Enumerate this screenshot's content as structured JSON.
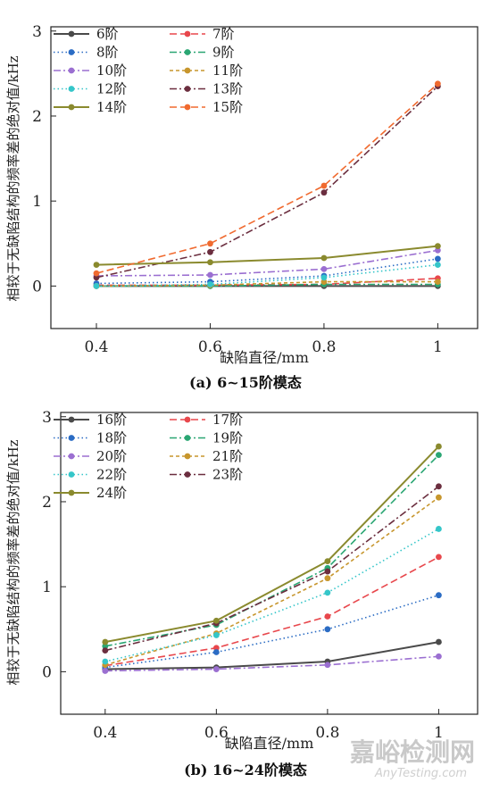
{
  "watermark": {
    "text": "嘉峪检测网",
    "url": "AnyTesting.com"
  },
  "chart_data": [
    {
      "type": "line",
      "caption": "(a) 6~15阶模态",
      "xlabel": "缺陷直径/mm",
      "ylabel": "相较于无缺陷结构的频率差的绝对值/kHz",
      "x": [
        0.4,
        0.6,
        0.8,
        1.0
      ],
      "x_tick_labels": [
        "0.4",
        "0.6",
        "0.8",
        "1"
      ],
      "xlim": [
        0.32,
        1.07
      ],
      "ylim": [
        -0.5,
        3.05
      ],
      "y_ticks": [
        0,
        1,
        2,
        3
      ],
      "legend": "top-left, 2 columns",
      "series": [
        {
          "name": "6阶",
          "color": "#4a4a4a",
          "dash": "solid",
          "values": [
            0.0,
            0.0,
            0.0,
            0.0
          ]
        },
        {
          "name": "7阶",
          "color": "#e8474c",
          "dash": "dash",
          "values": [
            0.01,
            0.01,
            0.02,
            0.09
          ]
        },
        {
          "name": "8阶",
          "color": "#2b6cc4",
          "dash": "dot",
          "values": [
            0.03,
            0.05,
            0.12,
            0.32
          ]
        },
        {
          "name": "9阶",
          "color": "#2aa673",
          "dash": "dashdot",
          "values": [
            0.0,
            0.0,
            0.02,
            0.02
          ]
        },
        {
          "name": "10阶",
          "color": "#9b6fd1",
          "dash": "dashdot",
          "values": [
            0.12,
            0.13,
            0.2,
            0.42
          ]
        },
        {
          "name": "11阶",
          "color": "#c7962d",
          "dash": "shortdash",
          "values": [
            0.0,
            0.01,
            0.05,
            0.05
          ]
        },
        {
          "name": "12阶",
          "color": "#35c6c9",
          "dash": "dot",
          "values": [
            0.0,
            0.02,
            0.1,
            0.25
          ]
        },
        {
          "name": "13阶",
          "color": "#6b2e3f",
          "dash": "dashdot",
          "values": [
            0.1,
            0.4,
            1.1,
            2.35
          ]
        },
        {
          "name": "14阶",
          "color": "#8a8a2e",
          "dash": "solid",
          "values": [
            0.25,
            0.28,
            0.33,
            0.47
          ]
        },
        {
          "name": "15阶",
          "color": "#f06a2f",
          "dash": "dash",
          "values": [
            0.15,
            0.5,
            1.18,
            2.38
          ]
        }
      ]
    },
    {
      "type": "line",
      "caption": "(b) 16~24阶模态",
      "xlabel": "缺陷直径/mm",
      "ylabel": "相较于无缺陷结构的频率差的绝对值/kHz",
      "x": [
        0.4,
        0.6,
        0.8,
        1.0
      ],
      "x_tick_labels": [
        "0.4",
        "0.6",
        "0.8",
        "1"
      ],
      "xlim": [
        0.32,
        1.07
      ],
      "ylim": [
        -0.5,
        3.05
      ],
      "y_ticks": [
        0,
        1,
        2,
        3
      ],
      "legend": "top-left, 2 columns",
      "series": [
        {
          "name": "16阶",
          "color": "#4a4a4a",
          "dash": "solid",
          "values": [
            0.03,
            0.05,
            0.12,
            0.35
          ]
        },
        {
          "name": "17阶",
          "color": "#e8474c",
          "dash": "dash",
          "values": [
            0.07,
            0.28,
            0.65,
            1.35
          ]
        },
        {
          "name": "18阶",
          "color": "#2b6cc4",
          "dash": "dot",
          "values": [
            0.05,
            0.23,
            0.5,
            0.9
          ]
        },
        {
          "name": "19阶",
          "color": "#2aa673",
          "dash": "dashdot",
          "values": [
            0.3,
            0.55,
            1.22,
            2.55
          ]
        },
        {
          "name": "20阶",
          "color": "#9b6fd1",
          "dash": "dashdot",
          "values": [
            0.01,
            0.03,
            0.08,
            0.18
          ]
        },
        {
          "name": "21阶",
          "color": "#c7962d",
          "dash": "shortdash",
          "values": [
            0.08,
            0.45,
            1.1,
            2.05
          ]
        },
        {
          "name": "22阶",
          "color": "#35c6c9",
          "dash": "dot",
          "values": [
            0.12,
            0.43,
            0.93,
            1.68
          ]
        },
        {
          "name": "23阶",
          "color": "#6b2e3f",
          "dash": "dashdot",
          "values": [
            0.25,
            0.57,
            1.18,
            2.18
          ]
        },
        {
          "name": "24阶",
          "color": "#8a8a2e",
          "dash": "solid",
          "values": [
            0.35,
            0.6,
            1.3,
            2.65
          ]
        }
      ]
    }
  ]
}
